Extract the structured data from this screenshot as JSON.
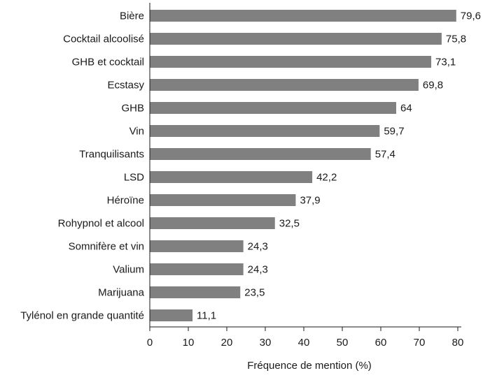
{
  "chart_data": {
    "type": "bar",
    "orientation": "horizontal",
    "categories": [
      "Bière",
      "Cocktail alcoolisé",
      "GHB et cocktail",
      "Ecstasy",
      "GHB",
      "Vin",
      "Tranquilisants",
      "LSD",
      "Héroïne",
      "Rohypnol et alcool",
      "Somnifère et vin",
      "Valium",
      "Marijuana",
      "Tylénol en grande quantité"
    ],
    "values": [
      79.6,
      75.8,
      73.1,
      69.8,
      64,
      59.7,
      57.4,
      42.2,
      37.9,
      32.5,
      24.3,
      24.3,
      23.5,
      11.1
    ],
    "value_labels": [
      "79,6",
      "75,8",
      "73,1",
      "69,8",
      "64",
      "59,7",
      "57,4",
      "42,2",
      "37,9",
      "32,5",
      "24,3",
      "24,3",
      "23,5",
      "11,1"
    ],
    "xlabel": "Fréquence de mention (%)",
    "ylabel": "",
    "xlim": [
      0,
      80
    ],
    "xticks": [
      0,
      10,
      20,
      30,
      40,
      50,
      60,
      70,
      80
    ],
    "grid": false,
    "bar_color": "#808080"
  }
}
